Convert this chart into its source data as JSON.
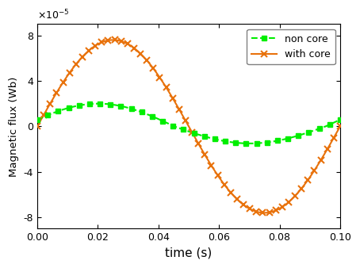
{
  "xlabel": "time (s)",
  "ylabel": "Magnetic flux (Wb)",
  "xlim": [
    0.0,
    0.1
  ],
  "ylim": [
    -9e-05,
    9e-05
  ],
  "yticks": [
    -8e-05,
    -4e-05,
    0,
    4e-05,
    8e-05
  ],
  "ytick_labels": [
    "-8",
    "-4",
    "0",
    "4",
    "8"
  ],
  "xticks": [
    0.0,
    0.02,
    0.04,
    0.06,
    0.08,
    0.1
  ],
  "xtick_labels": [
    "0.00",
    "0.02",
    "0.04",
    "0.06",
    "0.08",
    "0.10"
  ],
  "with_core_color": "#E8720C",
  "non_core_color": "#00EE00",
  "with_core_amplitude": 7.6e-05,
  "non_core_amplitude": 2e-05,
  "non_core_phase_shift": 0.3,
  "non_core_asymmetry": 0.65,
  "frequency": 10,
  "legend_non_core": "non core",
  "legend_with_core": "with core",
  "n_points_with_core": 48,
  "n_points_non_core": 30
}
